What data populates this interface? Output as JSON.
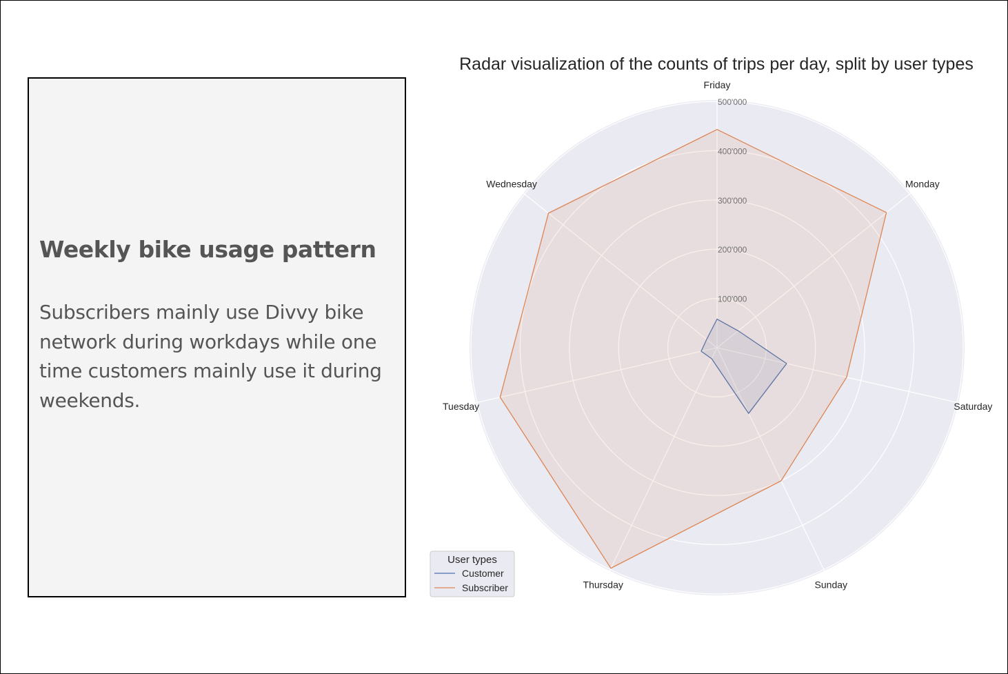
{
  "text_box": {
    "title": "Weekly bike usage pattern",
    "body": "Subscribers mainly use Divvy bike network during workdays while one time customers mainly use it during weekends."
  },
  "chart_data": {
    "type": "radar",
    "title": "Radar visualization of the counts of trips per day, split by user types",
    "categories": [
      "Friday",
      "Monday",
      "Saturday",
      "Sunday",
      "Thursday",
      "Tuesday",
      "Wednesday"
    ],
    "radial_ticks": [
      100000,
      200000,
      300000,
      400000,
      500000
    ],
    "radial_tick_labels": [
      "100'000",
      "200'000",
      "300'000",
      "400'000",
      "500'000"
    ],
    "rlim": [
      0,
      500000
    ],
    "grid": true,
    "series": [
      {
        "name": "Customer",
        "values": [
          58000,
          55000,
          145000,
          148000,
          25000,
          33000,
          27000
        ],
        "color": "#4c72b0"
      },
      {
        "name": "Subscriber",
        "values": [
          443000,
          440000,
          270000,
          300000,
          497000,
          452000,
          438000
        ],
        "color": "#dd8452"
      }
    ],
    "legend": {
      "title": "User types",
      "position": "bottom-left"
    },
    "colors": {
      "plot_background": "#eaeaf2",
      "grid": "#ffffff"
    }
  }
}
